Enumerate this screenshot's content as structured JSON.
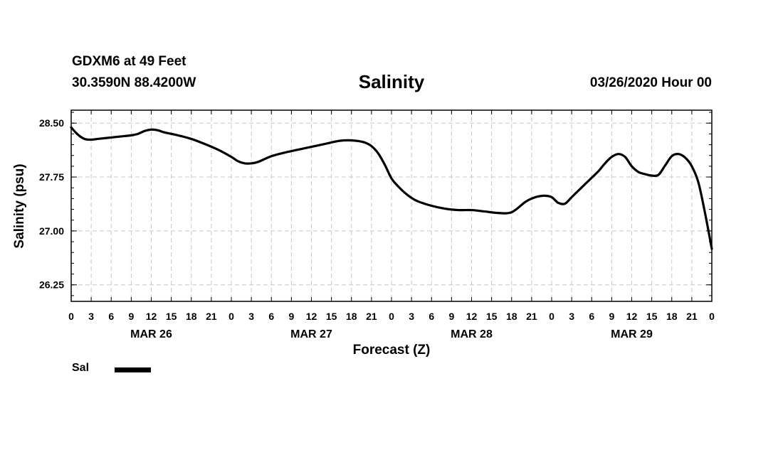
{
  "header": {
    "station": "GDXM6 at 49 Feet",
    "coords": "30.3590N 88.4200W",
    "title": "Salinity",
    "issued": "03/26/2020 Hour 00"
  },
  "legend": {
    "label": "Sal"
  },
  "chart_data": {
    "type": "line",
    "title": "Salinity",
    "xlabel": "Forecast (Z)",
    "ylabel": "Salinity (psu)",
    "xlim": [
      0,
      96
    ],
    "ylim": [
      26.02,
      28.68
    ],
    "yticks": [
      "26.25",
      "27.00",
      "27.75",
      "28.50"
    ],
    "ytick_values": [
      26.25,
      27.0,
      27.75,
      28.5
    ],
    "xtick_labels": [
      "0",
      "3",
      "6",
      "9",
      "12",
      "15",
      "18",
      "21",
      "0",
      "3",
      "6",
      "9",
      "12",
      "15",
      "18",
      "21",
      "0",
      "3",
      "6",
      "9",
      "12",
      "15",
      "18",
      "21",
      "0",
      "3",
      "6",
      "9",
      "12",
      "15",
      "18",
      "21",
      "0"
    ],
    "day_labels": [
      "MAR 26",
      "MAR 27",
      "MAR 28",
      "MAR 29"
    ],
    "grid": true,
    "legend_position": "bottom-left",
    "series": [
      {
        "name": "Sal",
        "color": "#000000",
        "x": [
          0,
          1,
          2,
          3,
          4,
          6,
          8,
          9,
          10,
          11,
          12,
          13,
          14,
          16,
          18,
          20,
          22,
          24,
          25,
          26,
          27,
          28,
          30,
          32,
          34,
          36,
          38,
          40,
          41,
          42,
          43,
          44,
          45,
          46,
          47,
          48,
          49,
          50,
          51,
          52,
          54,
          56,
          58,
          60,
          62,
          64,
          66,
          68,
          69,
          70,
          71,
          72,
          73,
          74,
          75,
          76,
          77,
          78,
          79,
          80,
          81,
          82,
          83,
          84,
          85,
          86,
          87,
          88,
          89,
          90,
          91,
          92,
          93,
          94,
          95,
          96
        ],
        "y": [
          28.44,
          28.34,
          28.28,
          28.27,
          28.28,
          28.3,
          28.32,
          28.33,
          28.35,
          28.39,
          28.41,
          28.4,
          28.37,
          28.33,
          28.28,
          28.21,
          28.13,
          28.03,
          27.97,
          27.94,
          27.94,
          27.96,
          28.04,
          28.09,
          28.13,
          28.17,
          28.21,
          28.25,
          28.26,
          28.26,
          28.25,
          28.23,
          28.18,
          28.08,
          27.92,
          27.73,
          27.62,
          27.53,
          27.46,
          27.41,
          27.35,
          27.31,
          27.29,
          27.29,
          27.27,
          27.25,
          27.26,
          27.4,
          27.45,
          27.48,
          27.49,
          27.47,
          27.39,
          27.38,
          27.47,
          27.56,
          27.65,
          27.74,
          27.83,
          27.94,
          28.03,
          28.07,
          28.03,
          27.9,
          27.82,
          27.79,
          27.77,
          27.78,
          27.91,
          28.04,
          28.07,
          28.02,
          27.9,
          27.67,
          27.24,
          26.75
        ]
      }
    ]
  }
}
